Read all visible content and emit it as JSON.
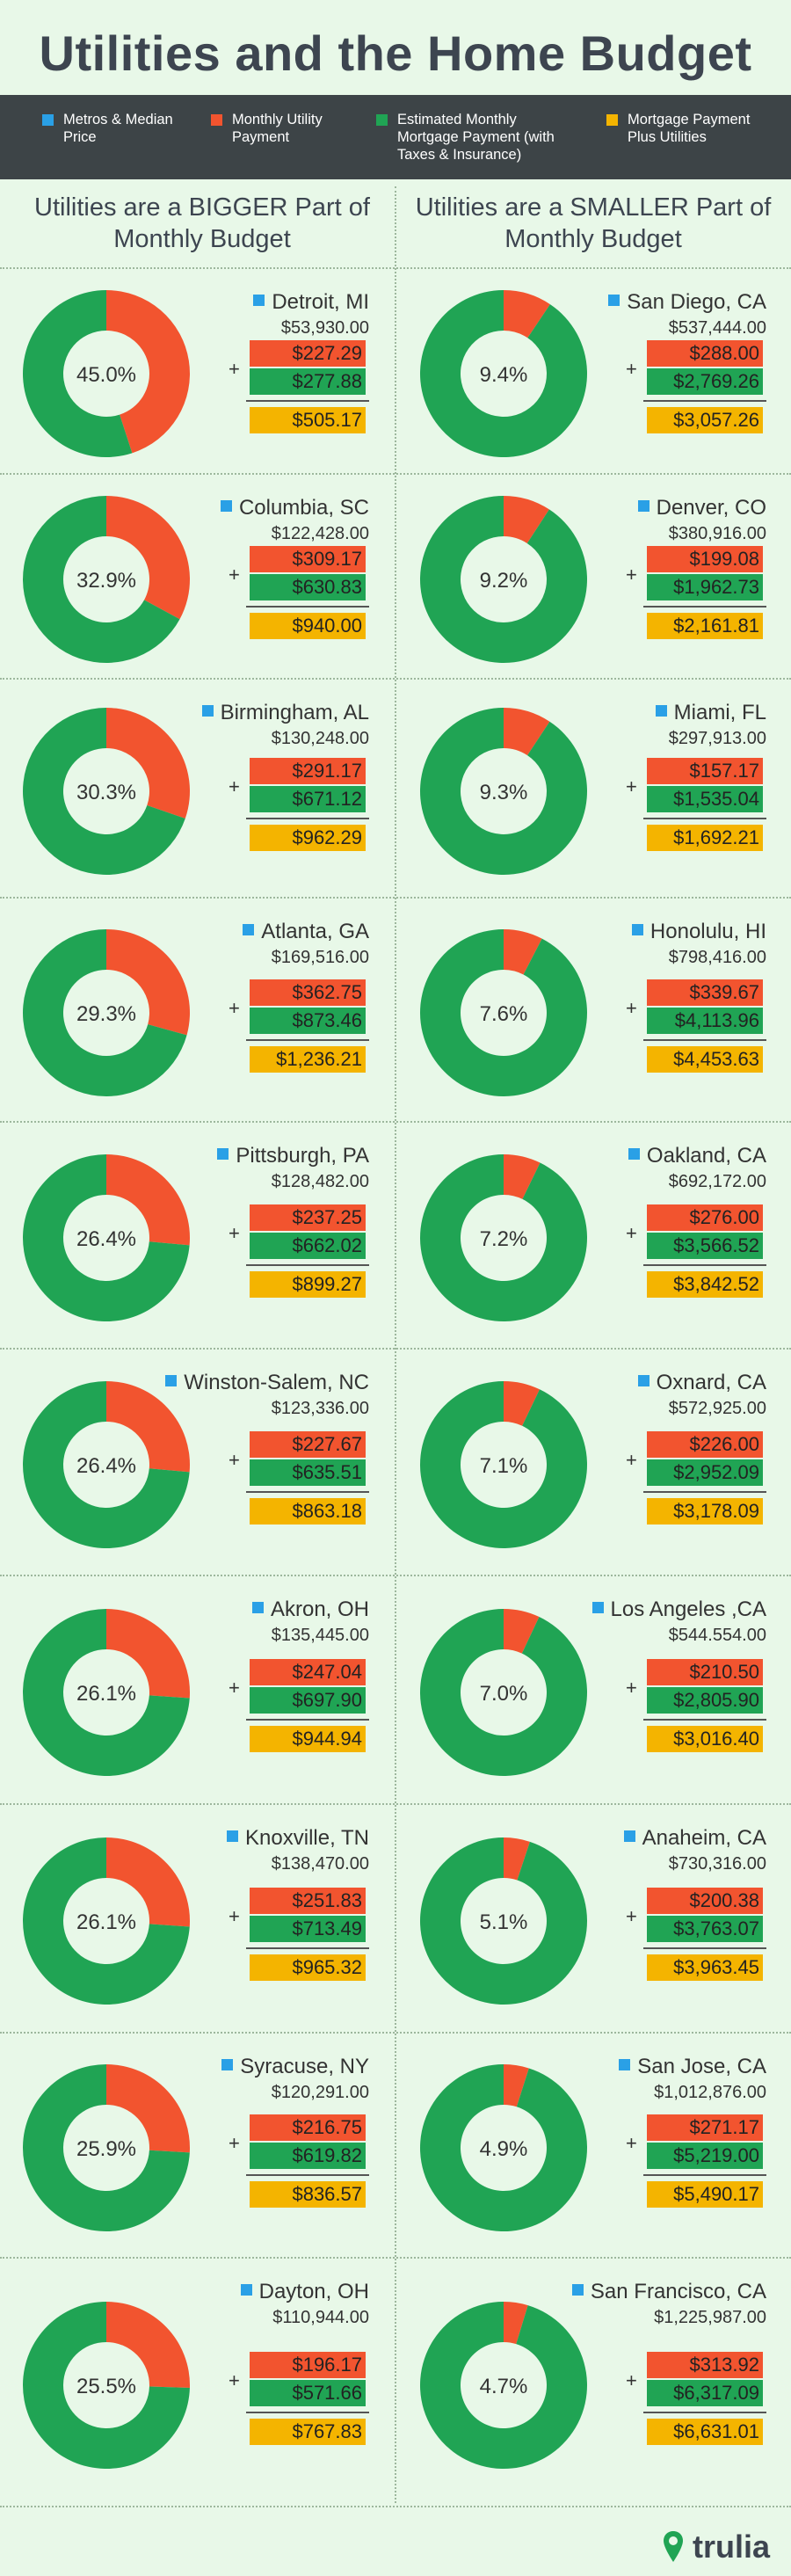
{
  "title": "Utilities and the Home Budget",
  "legend": [
    {
      "label": "Metros & Median Price",
      "color": "#2aa0e6"
    },
    {
      "label": "Monthly Utility Payment",
      "color": "#f2542f"
    },
    {
      "label": "Estimated Monthly Mortgage Payment (with Taxes & Insurance)",
      "color": "#20a454"
    },
    {
      "label": "Mortgage Payment Plus Utilities",
      "color": "#f4b400"
    }
  ],
  "columns": {
    "left": "Utilities are a BIGGER Part of Monthly Budget",
    "right": "Utilities are a SMALLER Part of Monthly Budget"
  },
  "colors": {
    "utility": "#f2542f",
    "mortgage": "#20a454",
    "total": "#f4b400",
    "metro": "#2aa0e6",
    "inner": "#e8f8e8"
  },
  "chart_data": {
    "type": "pie",
    "title": "Utilities and the Home Budget",
    "series": [
      {
        "name": "Utilities are a BIGGER Part of Monthly Budget",
        "items": [
          {
            "metro": "Detroit, MI",
            "price": "$53,930.00",
            "pct": 45.0,
            "pct_label": "45.0%",
            "utility": "$227.29",
            "mortgage": "$277.88",
            "total": "$505.17"
          },
          {
            "metro": "Columbia, SC",
            "price": "$122,428.00",
            "pct": 32.9,
            "pct_label": "32.9%",
            "utility": "$309.17",
            "mortgage": "$630.83",
            "total": "$940.00"
          },
          {
            "metro": "Birmingham, AL",
            "price": "$130,248.00",
            "pct": 30.3,
            "pct_label": "30.3%",
            "utility": "$291.17",
            "mortgage": "$671.12",
            "total": "$962.29"
          },
          {
            "metro": "Atlanta, GA",
            "price": "$169,516.00",
            "pct": 29.3,
            "pct_label": "29.3%",
            "utility": "$362.75",
            "mortgage": "$873.46",
            "total": "$1,236.21"
          },
          {
            "metro": "Pittsburgh, PA",
            "price": "$128,482.00",
            "pct": 26.4,
            "pct_label": "26.4%",
            "utility": "$237.25",
            "mortgage": "$662.02",
            "total": "$899.27"
          },
          {
            "metro": "Winston-Salem, NC",
            "price": "$123,336.00",
            "pct": 26.4,
            "pct_label": "26.4%",
            "utility": "$227.67",
            "mortgage": "$635.51",
            "total": "$863.18"
          },
          {
            "metro": "Akron, OH",
            "price": "$135,445.00",
            "pct": 26.1,
            "pct_label": "26.1%",
            "utility": "$247.04",
            "mortgage": "$697.90",
            "total": "$944.94"
          },
          {
            "metro": "Knoxville, TN",
            "price": "$138,470.00",
            "pct": 26.1,
            "pct_label": "26.1%",
            "utility": "$251.83",
            "mortgage": "$713.49",
            "total": "$965.32"
          },
          {
            "metro": "Syracuse, NY",
            "price": "$120,291.00",
            "pct": 25.9,
            "pct_label": "25.9%",
            "utility": "$216.75",
            "mortgage": "$619.82",
            "total": "$836.57"
          },
          {
            "metro": "Dayton, OH",
            "price": "$110,944.00",
            "pct": 25.5,
            "pct_label": "25.5%",
            "utility": "$196.17",
            "mortgage": "$571.66",
            "total": "$767.83"
          }
        ]
      },
      {
        "name": "Utilities are a SMALLER Part of Monthly Budget",
        "items": [
          {
            "metro": "San Diego, CA",
            "price": "$537,444.00",
            "pct": 9.4,
            "pct_label": "9.4%",
            "utility": "$288.00",
            "mortgage": "$2,769.26",
            "total": "$3,057.26"
          },
          {
            "metro": "Denver, CO",
            "price": "$380,916.00",
            "pct": 9.2,
            "pct_label": "9.2%",
            "utility": "$199.08",
            "mortgage": "$1,962.73",
            "total": "$2,161.81"
          },
          {
            "metro": "Miami, FL",
            "price": "$297,913.00",
            "pct": 9.3,
            "pct_label": "9.3%",
            "utility": "$157.17",
            "mortgage": "$1,535.04",
            "total": "$1,692.21"
          },
          {
            "metro": "Honolulu, HI",
            "price": "$798,416.00",
            "pct": 7.6,
            "pct_label": "7.6%",
            "utility": "$339.67",
            "mortgage": "$4,113.96",
            "total": "$4,453.63"
          },
          {
            "metro": "Oakland, CA",
            "price": "$692,172.00",
            "pct": 7.2,
            "pct_label": "7.2%",
            "utility": "$276.00",
            "mortgage": "$3,566.52",
            "total": "$3,842.52"
          },
          {
            "metro": "Oxnard, CA",
            "price": "$572,925.00",
            "pct": 7.1,
            "pct_label": "7.1%",
            "utility": "$226.00",
            "mortgage": "$2,952.09",
            "total": "$3,178.09"
          },
          {
            "metro": "Los Angeles ,CA",
            "price": "$544.554.00",
            "pct": 7.0,
            "pct_label": "7.0%",
            "utility": "$210.50",
            "mortgage": "$2,805.90",
            "total": "$3,016.40"
          },
          {
            "metro": "Anaheim, CA",
            "price": "$730,316.00",
            "pct": 5.1,
            "pct_label": "5.1%",
            "utility": "$200.38",
            "mortgage": "$3,763.07",
            "total": "$3,963.45"
          },
          {
            "metro": "San Jose, CA",
            "price": "$1,012,876.00",
            "pct": 4.9,
            "pct_label": "4.9%",
            "utility": "$271.17",
            "mortgage": "$5,219.00",
            "total": "$5,490.17"
          },
          {
            "metro": "San Francisco, CA",
            "price": "$1,225,987.00",
            "pct": 4.7,
            "pct_label": "4.7%",
            "utility": "$313.92",
            "mortgage": "$6,317.09",
            "total": "$6,631.01"
          }
        ]
      }
    ]
  },
  "footer": {
    "brand": "trulia"
  }
}
